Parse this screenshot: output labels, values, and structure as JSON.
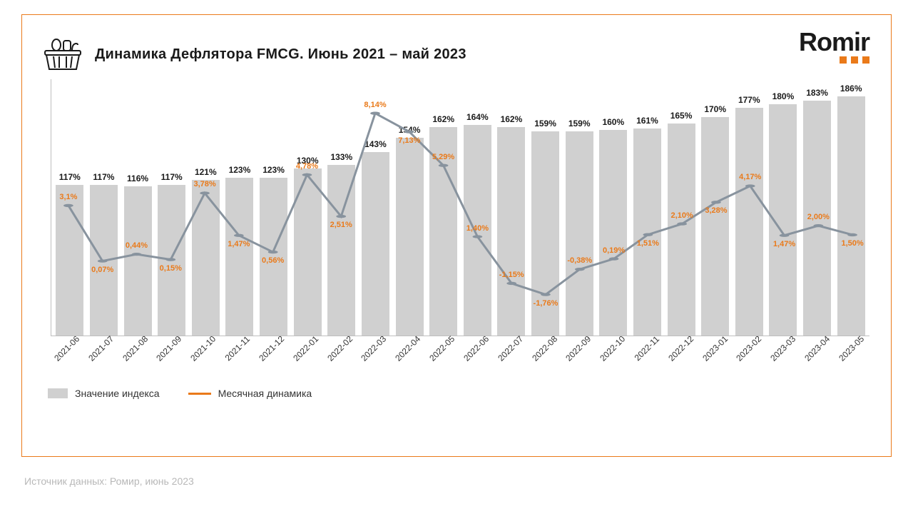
{
  "title": "Динамика Дефлятора FMCG. Июнь 2021 – май 2023",
  "logo": {
    "text": "Romir",
    "dot_color": "#ea7a1a"
  },
  "legend": {
    "bar": {
      "label": "Значение индекса",
      "color": "#d0d0d0"
    },
    "line": {
      "label": "Месячная динамика",
      "color": "#ea7a1a"
    }
  },
  "source": "Источник данных: Ромир, июнь 2023",
  "chart": {
    "type": "bar+line",
    "bar_color": "#d0d0d0",
    "bar_text_color": "#1a1a1a",
    "line_color": "#88939e",
    "line_width": 3,
    "line_label_color": "#ea7a1a",
    "axis_color": "#bfbfbf",
    "background_color": "#ffffff",
    "bar_fontsize": 12,
    "line_label_fontsize": 11,
    "x_label_fontsize": 12,
    "bar_ymax": 200,
    "line_ymin": -4,
    "line_ymax": 10,
    "categories": [
      "2021-06",
      "2021-07",
      "2021-08",
      "2021-09",
      "2021-10",
      "2021-11",
      "2021-12",
      "2022-01",
      "2022-02",
      "2022-03",
      "2022-04",
      "2022-05",
      "2022-06",
      "2022-07",
      "2022-08",
      "2022-09",
      "2022-10",
      "2022-11",
      "2022-12",
      "2023-01",
      "2023-02",
      "2023-03",
      "2023-04",
      "2023-05"
    ],
    "bar_values": [
      117,
      117,
      116,
      117,
      121,
      123,
      123,
      130,
      133,
      143,
      154,
      162,
      164,
      162,
      159,
      159,
      160,
      161,
      165,
      170,
      177,
      180,
      183,
      186
    ],
    "bar_labels": [
      "117%",
      "117%",
      "116%",
      "117%",
      "121%",
      "123%",
      "123%",
      "130%",
      "133%",
      "143%",
      "154%",
      "162%",
      "164%",
      "162%",
      "159%",
      "159%",
      "160%",
      "161%",
      "165%",
      "170%",
      "177%",
      "180%",
      "183%",
      "186%"
    ],
    "line_values": [
      3.1,
      0.07,
      0.44,
      0.15,
      3.78,
      1.47,
      0.56,
      4.78,
      2.51,
      8.14,
      7.13,
      5.29,
      1.4,
      -1.15,
      -1.76,
      -0.38,
      0.19,
      1.51,
      2.1,
      3.28,
      4.17,
      1.47,
      2.0,
      1.5
    ],
    "line_labels": [
      "3,1%",
      "0,07%",
      "0,44%",
      "0,15%",
      "3,78%",
      "1,47%",
      "0,56%",
      "4,78%",
      "2,51%",
      "8,14%",
      "7,13%",
      "5,29%",
      "1,40%",
      "-1,15%",
      "-1,76%",
      "-0,38%",
      "0,19%",
      "1,51%",
      "2,10%",
      "3,28%",
      "4,17%",
      "1,47%",
      "2,00%",
      "1,50%"
    ],
    "line_label_pos": [
      "above",
      "below",
      "above",
      "below",
      "above",
      "below",
      "below",
      "above",
      "below",
      "above",
      "below",
      "above",
      "above",
      "above",
      "below",
      "above",
      "above",
      "below",
      "above",
      "below",
      "above",
      "below",
      "above",
      "below"
    ]
  }
}
